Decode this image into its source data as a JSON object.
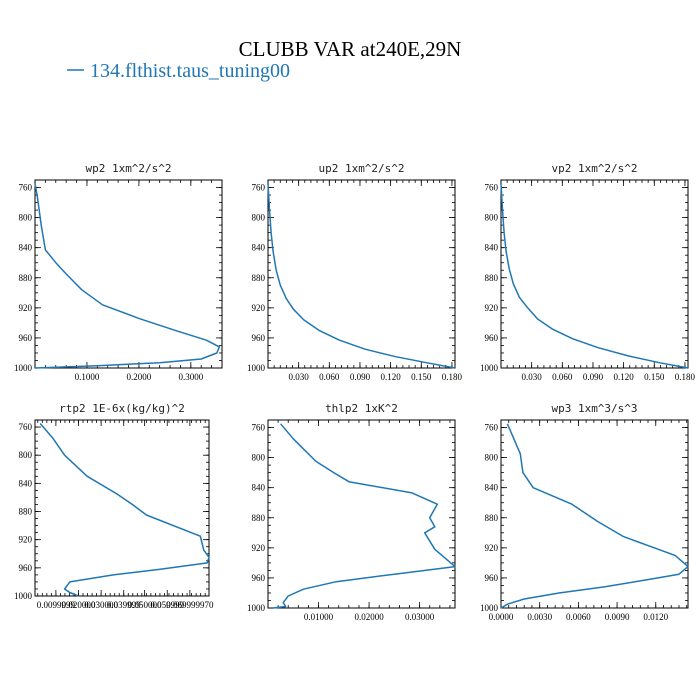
{
  "figure": {
    "title": "CLUBB VAR at240E,29N",
    "series_name": "134.flthist.taus_tuning00",
    "series_color": "#1f77b4"
  },
  "chart_data": [
    {
      "type": "line",
      "title": "wp2  1xm^2/s^2",
      "xlim": [
        0.0,
        0.36
      ],
      "ylim": [
        1000,
        750
      ],
      "xticks": [
        0.1,
        0.2,
        0.3
      ],
      "xtick_labels": [
        "0.1000",
        "0.2000",
        "0.3000"
      ],
      "yticks": [
        760,
        800,
        840,
        880,
        920,
        960,
        1000
      ],
      "ytick_labels": [
        "760",
        "800",
        "840",
        "880",
        "920",
        "960",
        "1000"
      ],
      "series": [
        {
          "x": [
            0.0,
            0.004,
            0.008,
            0.012,
            0.02,
            0.04,
            0.06,
            0.09,
            0.13,
            0.2,
            0.27,
            0.33,
            0.355,
            0.35,
            0.32,
            0.24,
            0.12,
            0.0
          ],
          "y": [
            755,
            770,
            790,
            810,
            843,
            860,
            875,
            896,
            916,
            934,
            950,
            963,
            972,
            980,
            988,
            993,
            997,
            1000
          ]
        }
      ]
    },
    {
      "type": "line",
      "title": "up2  1xm^2/s^2",
      "xlim": [
        0.0,
        0.183
      ],
      "ylim": [
        1000,
        750
      ],
      "xticks": [
        0.03,
        0.06,
        0.09,
        0.12,
        0.15,
        0.18
      ],
      "xtick_labels": [
        "0.030",
        "0.060",
        "0.090",
        "0.120",
        "0.150",
        "0.180"
      ],
      "yticks": [
        760,
        800,
        840,
        880,
        920,
        960,
        1000
      ],
      "ytick_labels": [
        "760",
        "800",
        "840",
        "880",
        "920",
        "960",
        "1000"
      ],
      "series": [
        {
          "x": [
            0.0,
            0.0015,
            0.003,
            0.005,
            0.008,
            0.012,
            0.018,
            0.025,
            0.035,
            0.05,
            0.07,
            0.095,
            0.125,
            0.155,
            0.183
          ],
          "y": [
            755,
            790,
            820,
            845,
            870,
            890,
            908,
            922,
            936,
            950,
            963,
            975,
            985,
            993,
            1000
          ]
        }
      ]
    },
    {
      "type": "line",
      "title": "vp2  1xm^2/s^2",
      "xlim": [
        0.0,
        0.183
      ],
      "ylim": [
        1000,
        750
      ],
      "xticks": [
        0.03,
        0.06,
        0.09,
        0.12,
        0.15,
        0.18
      ],
      "xtick_labels": [
        "0.030",
        "0.060",
        "0.090",
        "0.120",
        "0.150",
        "0.180"
      ],
      "yticks": [
        760,
        800,
        840,
        880,
        920,
        960,
        1000
      ],
      "ytick_labels": [
        "760",
        "800",
        "840",
        "880",
        "920",
        "960",
        "1000"
      ],
      "series": [
        {
          "x": [
            0.0,
            0.0015,
            0.003,
            0.005,
            0.008,
            0.012,
            0.018,
            0.026,
            0.036,
            0.05,
            0.07,
            0.095,
            0.125,
            0.155,
            0.183
          ],
          "y": [
            755,
            790,
            820,
            845,
            868,
            888,
            906,
            920,
            935,
            948,
            961,
            973,
            984,
            993,
            1000
          ]
        }
      ]
    },
    {
      "type": "line",
      "title": "rtp2  1E-6x(kg/kg)^2",
      "xlim": [
        0.0,
        1.0
      ],
      "ylim": [
        1000,
        750
      ],
      "xticks": [
        0.12,
        0.25,
        0.38,
        0.51,
        0.63,
        0.76,
        0.89
      ],
      "xtick_labels": [
        "0.0099999",
        "0.020000",
        "0.030000",
        "0.039999",
        "0.050000",
        "0.059999",
        "0.069999970"
      ],
      "yticks": [
        760,
        800,
        840,
        880,
        920,
        960,
        1000
      ],
      "ytick_labels": [
        "760",
        "800",
        "840",
        "880",
        "920",
        "960",
        "1000"
      ],
      "series": [
        {
          "x": [
            0.03,
            0.1,
            0.17,
            0.3,
            0.47,
            0.56,
            0.64,
            0.95,
            0.97,
            1.0,
            0.99,
            0.72,
            0.45,
            0.2,
            0.17,
            0.2,
            0.25
          ],
          "y": [
            755,
            775,
            800,
            830,
            855,
            870,
            885,
            915,
            935,
            945,
            953,
            962,
            970,
            980,
            990,
            995,
            1000
          ]
        }
      ]
    },
    {
      "type": "line",
      "title": "thlp2  1xK^2",
      "xlim": [
        0.0,
        0.037
      ],
      "ylim": [
        1000,
        750
      ],
      "xticks": [
        0.01,
        0.02,
        0.03
      ],
      "xtick_labels": [
        "0.01000",
        "0.02000",
        "0.03000"
      ],
      "yticks": [
        760,
        800,
        840,
        880,
        920,
        960,
        1000
      ],
      "ytick_labels": [
        "760",
        "800",
        "840",
        "880",
        "920",
        "960",
        "1000"
      ],
      "series": [
        {
          "x": [
            0.0025,
            0.005,
            0.0095,
            0.013,
            0.016,
            0.0285,
            0.0335,
            0.032,
            0.033,
            0.031,
            0.033,
            0.037,
            0.025,
            0.0135,
            0.007,
            0.004,
            0.003,
            0.0035,
            0.001
          ],
          "y": [
            755,
            775,
            805,
            820,
            832,
            847,
            862,
            880,
            892,
            900,
            922,
            945,
            955,
            965,
            975,
            984,
            993,
            998,
            1000
          ]
        }
      ]
    },
    {
      "type": "line",
      "title": "wp3  1xm^3/s^3",
      "xlim": [
        0.0,
        0.0145
      ],
      "ylim": [
        1000,
        750
      ],
      "xticks": [
        0.0,
        0.003,
        0.006,
        0.009,
        0.012
      ],
      "xtick_labels": [
        "0.0000",
        "0.0030",
        "0.0060",
        "0.0090",
        "0.0120"
      ],
      "yticks": [
        760,
        800,
        840,
        880,
        920,
        960,
        1000
      ],
      "ytick_labels": [
        "760",
        "800",
        "840",
        "880",
        "920",
        "960",
        "1000"
      ],
      "series": [
        {
          "x": [
            0.0005,
            0.0015,
            0.0017,
            0.0025,
            0.0055,
            0.0075,
            0.0095,
            0.0135,
            0.0145,
            0.0138,
            0.0115,
            0.008,
            0.0045,
            0.0018,
            0.0005,
            0.0
          ],
          "y": [
            755,
            795,
            820,
            840,
            862,
            885,
            905,
            930,
            945,
            955,
            962,
            972,
            980,
            988,
            995,
            1000
          ]
        }
      ]
    }
  ]
}
